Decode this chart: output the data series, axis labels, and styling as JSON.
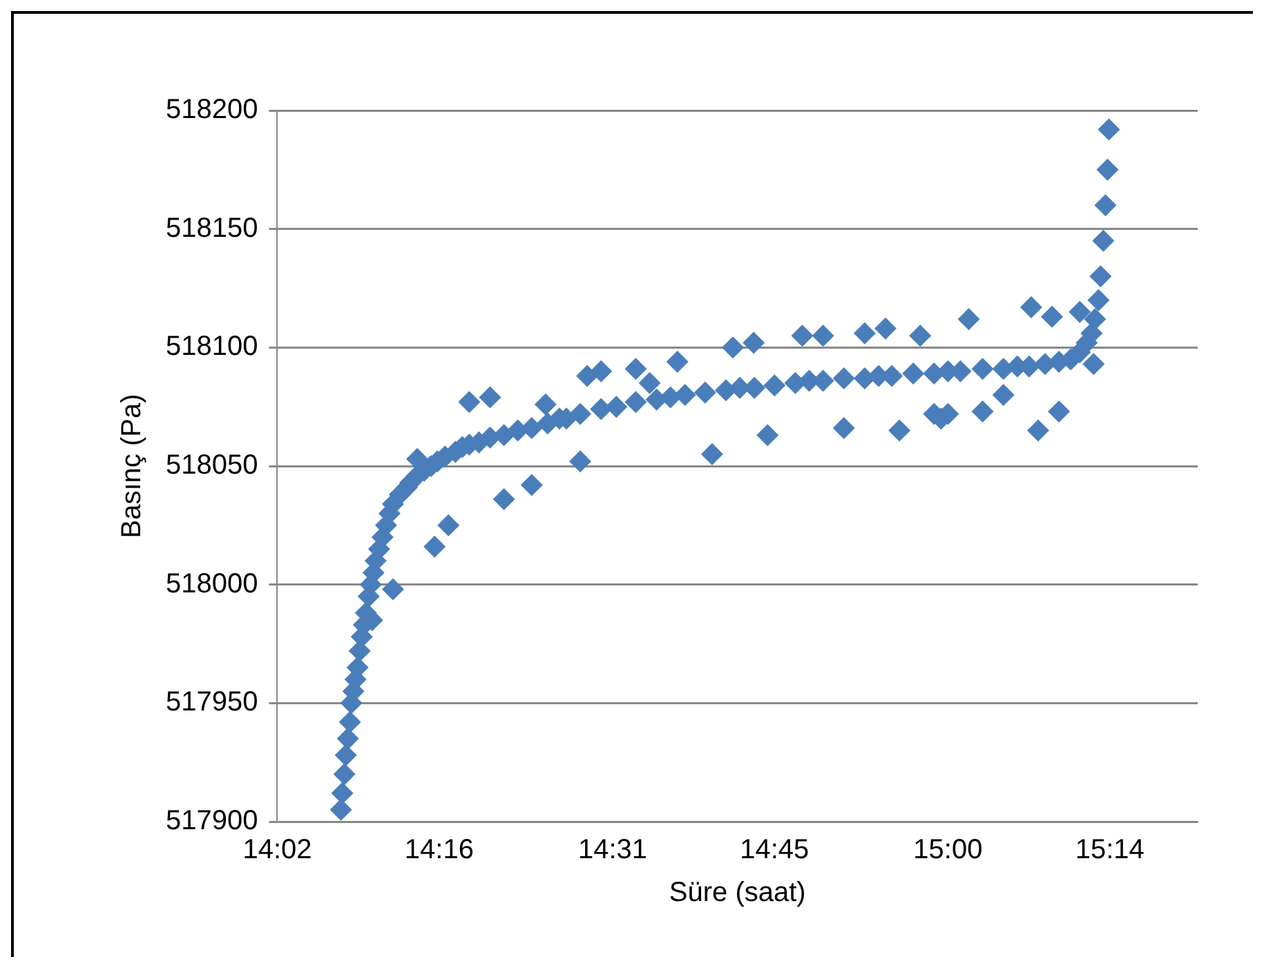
{
  "chart_data": {
    "type": "scatter",
    "xlabel": "Süre (saat)",
    "ylabel": "Basınç (Pa)",
    "marker": "diamond",
    "grid": "y",
    "legend": false,
    "xlim": [
      14.0333,
      15.36
    ],
    "ylim": [
      517900,
      518200
    ],
    "xticks": [
      {
        "value": 14.0333,
        "label": "14:02"
      },
      {
        "value": 14.2667,
        "label": "14:16"
      },
      {
        "value": 14.5167,
        "label": "14:31"
      },
      {
        "value": 14.75,
        "label": "14:45"
      },
      {
        "value": 15.0,
        "label": "15:00"
      },
      {
        "value": 15.2333,
        "label": "15:14"
      }
    ],
    "yticks": [
      517900,
      517950,
      518000,
      518050,
      518100,
      518150,
      518200
    ],
    "series": [
      {
        "color": "#4a7ebb",
        "x": [
          14.125,
          14.127,
          14.13,
          14.132,
          14.135,
          14.138,
          14.14,
          14.143,
          14.146,
          14.149,
          14.152,
          14.155,
          14.158,
          14.161,
          14.165,
          14.168,
          14.172,
          14.175,
          14.18,
          14.185,
          14.19,
          14.195,
          14.2,
          14.21,
          14.22,
          14.225,
          14.235,
          14.245,
          14.255,
          14.264,
          14.275,
          14.29,
          14.3,
          14.31,
          14.324,
          14.34,
          14.36,
          14.38,
          14.4,
          14.423,
          14.45,
          14.47,
          14.5,
          14.522,
          14.55,
          14.58,
          14.6,
          14.621,
          14.65,
          14.68,
          14.7,
          14.721,
          14.75,
          14.78,
          14.8,
          14.82,
          14.85,
          14.88,
          14.9,
          14.919,
          14.95,
          14.98,
          15.0,
          15.018,
          15.05,
          15.08,
          15.1,
          15.117,
          15.14,
          15.16,
          15.177,
          15.19,
          15.2,
          15.207,
          15.212,
          15.217,
          15.22,
          15.224,
          15.227,
          15.23,
          15.232,
          14.235,
          14.26,
          14.28,
          14.31,
          14.34,
          14.36,
          14.4,
          14.42,
          14.44,
          14.48,
          14.5,
          14.47,
          14.55,
          14.57,
          14.61,
          14.66,
          14.69,
          14.72,
          14.74,
          14.79,
          14.82,
          14.85,
          14.88,
          14.91,
          14.93,
          14.96,
          14.99,
          15.03,
          15.05,
          15.08,
          15.12,
          15.13,
          15.15,
          15.16,
          15.19,
          15.21,
          15.0,
          14.98,
          14.2,
          14.17
        ],
        "values": [
          517905,
          517912,
          517920,
          517928,
          517935,
          517942,
          517950,
          517955,
          517960,
          517965,
          517972,
          517978,
          517983,
          517988,
          517995,
          518000,
          518005,
          518010,
          518015,
          518020,
          518025,
          518030,
          518034,
          518038,
          518041,
          518043,
          518046,
          518048,
          518050,
          518052,
          518054,
          518056,
          518058,
          518059,
          518060,
          518062,
          518063,
          518065,
          518066,
          518068,
          518070,
          518072,
          518074,
          518075,
          518077,
          518078,
          518079,
          518080,
          518081,
          518082,
          518083,
          518083,
          518084,
          518085,
          518086,
          518086,
          518087,
          518087,
          518088,
          518088,
          518089,
          518089,
          518090,
          518090,
          518091,
          518091,
          518092,
          518092,
          518093,
          518094,
          518095,
          518098,
          518102,
          518106,
          518112,
          518120,
          518130,
          518145,
          518160,
          518175,
          518192,
          518053,
          518016,
          518025,
          518077,
          518079,
          518036,
          518042,
          518076,
          518070,
          518088,
          518090,
          518052,
          518091,
          518085,
          518094,
          518055,
          518100,
          518102,
          518063,
          518105,
          518105,
          518066,
          518106,
          518108,
          518065,
          518105,
          518070,
          518112,
          518073,
          518080,
          518117,
          518065,
          518113,
          518073,
          518115,
          518093,
          518072,
          518072,
          517998,
          517985
        ]
      }
    ]
  }
}
